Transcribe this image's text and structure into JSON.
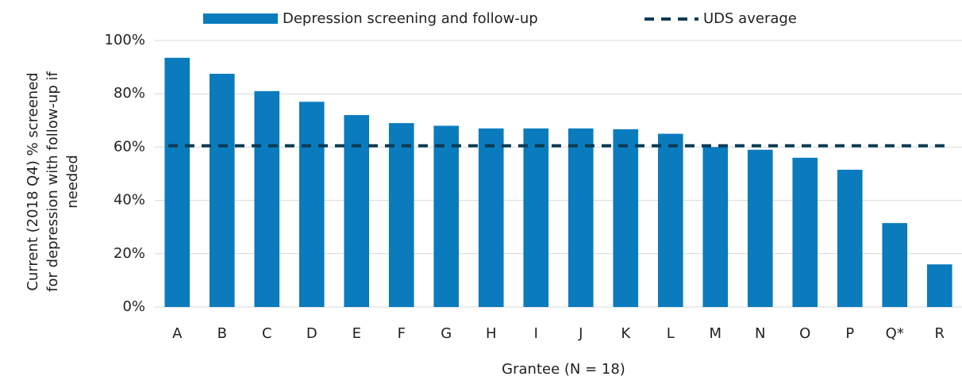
{
  "chart_data": {
    "type": "bar",
    "x_label": "Grantee (N = 18)",
    "y_label": [
      "Current (2018 Q4) % screened",
      "for depression with follow-up if",
      "needed"
    ],
    "categories": [
      "A",
      "B",
      "C",
      "D",
      "E",
      "F",
      "G",
      "H",
      "I",
      "J",
      "K",
      "L",
      "M",
      "N",
      "O",
      "P",
      "Q*",
      "R"
    ],
    "series": [
      {
        "name": "Depression screening and follow-up",
        "color": "#0a7bbd",
        "values": [
          93.5,
          87.5,
          81,
          77,
          72,
          69,
          68,
          67,
          67,
          67,
          66.7,
          65,
          60,
          59,
          56,
          51.5,
          31.5,
          16
        ]
      }
    ],
    "reference_line": {
      "name": "UDS average",
      "value": 60.5,
      "color": "#0c3b55"
    },
    "ylim": [
      0,
      100
    ],
    "yticks": [
      {
        "value": 0,
        "label": "0%"
      },
      {
        "value": 20,
        "label": "20%"
      },
      {
        "value": 40,
        "label": "40%"
      },
      {
        "value": 60,
        "label": "60%"
      },
      {
        "value": 80,
        "label": "80%"
      },
      {
        "value": 100,
        "label": "100%"
      }
    ],
    "grid": true
  }
}
